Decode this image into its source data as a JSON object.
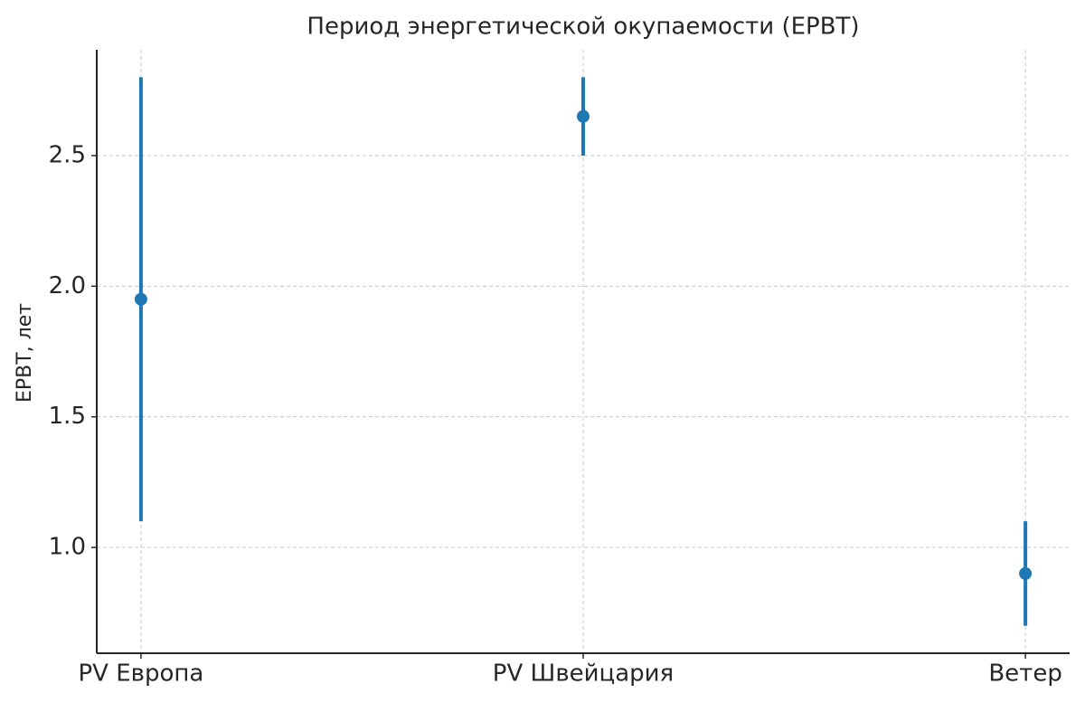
{
  "chart_data": {
    "type": "errorbar",
    "title": "Период энергетической окупаемости (EPBT)",
    "y_label": "EPBT, лет",
    "categories": [
      "PV Европа",
      "PV Швейцария",
      "Ветер"
    ],
    "values": [
      1.95,
      2.65,
      0.9
    ],
    "errors": [
      0.85,
      0.15,
      0.2
    ],
    "color": "#1f77b4",
    "ylim": [
      0.595,
      2.905
    ],
    "yticks": [
      {
        "value": 1.0,
        "label": "1.0"
      },
      1.5,
      {
        "value": 2.0,
        "label": "2.0"
      },
      2.5
    ],
    "grid": true
  }
}
